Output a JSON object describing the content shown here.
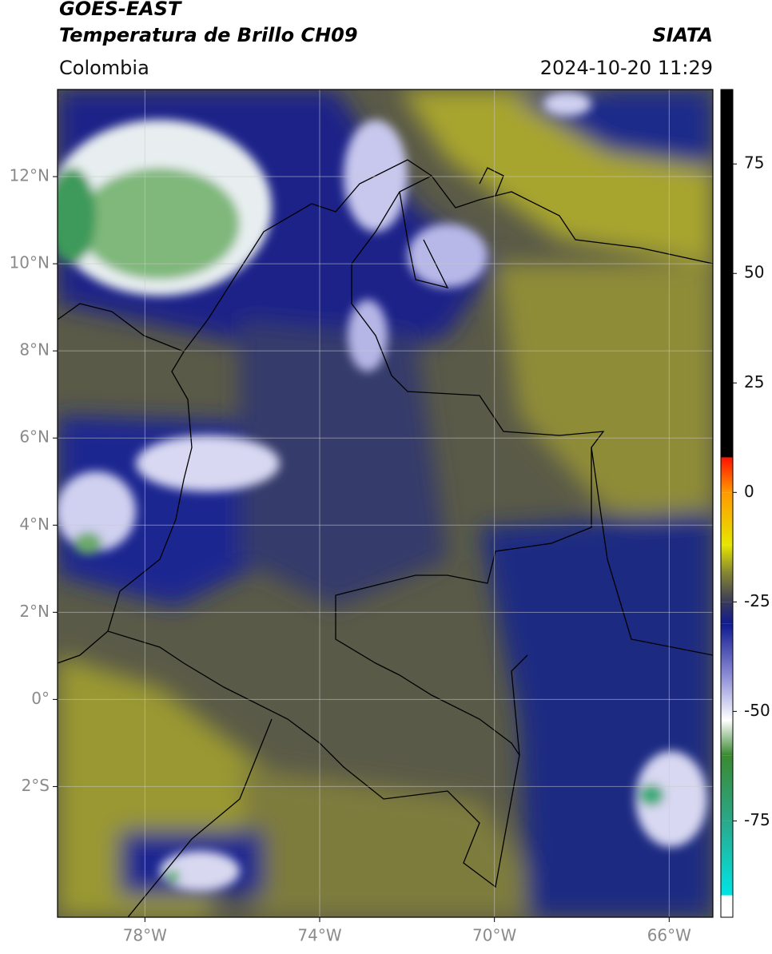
{
  "header": {
    "title": "GOES-EAST",
    "subtitle": "Temperatura de Brillo CH09",
    "region": "Colombia",
    "agency": "SIATA",
    "datetime": "2024-10-20 11:29"
  },
  "map": {
    "xlim": [
      -80,
      -65
    ],
    "ylim": [
      -5,
      14
    ],
    "xticks": [
      {
        "value": -78,
        "label": "78°W"
      },
      {
        "value": -74,
        "label": "74°W"
      },
      {
        "value": -70,
        "label": "70°W"
      },
      {
        "value": -66,
        "label": "66°W"
      }
    ],
    "yticks": [
      {
        "value": 12,
        "label": "12°N"
      },
      {
        "value": 10,
        "label": "10°N"
      },
      {
        "value": 8,
        "label": "8°N"
      },
      {
        "value": 6,
        "label": "6°N"
      },
      {
        "value": 4,
        "label": "4°N"
      },
      {
        "value": 2,
        "label": "2°N"
      },
      {
        "value": 0,
        "label": "0°"
      },
      {
        "value": -2,
        "label": "2°S"
      }
    ],
    "grid": true
  },
  "colorbar": {
    "lim": [
      -97,
      92
    ],
    "ticks": [
      75,
      50,
      25,
      0,
      -25,
      -50,
      -75
    ],
    "stops": [
      {
        "value": -97,
        "color": "#ffffff"
      },
      {
        "value": -92,
        "color": "#ffffff"
      },
      {
        "value": -92,
        "color": "#00e5e5"
      },
      {
        "value": -75,
        "color": "#2aa88a"
      },
      {
        "value": -60,
        "color": "#3a8a30"
      },
      {
        "value": -52,
        "color": "#ffffff"
      },
      {
        "value": -42,
        "color": "#8e8ed8"
      },
      {
        "value": -30,
        "color": "#101a90"
      },
      {
        "value": -25,
        "color": "#3a3a5a"
      },
      {
        "value": -18,
        "color": "#8a8a30"
      },
      {
        "value": -12,
        "color": "#e6e600"
      },
      {
        "value": 0,
        "color": "#ff9900"
      },
      {
        "value": 8,
        "color": "#ff1100"
      },
      {
        "value": 8,
        "color": "#000000"
      },
      {
        "value": 92,
        "color": "#000000"
      }
    ]
  }
}
